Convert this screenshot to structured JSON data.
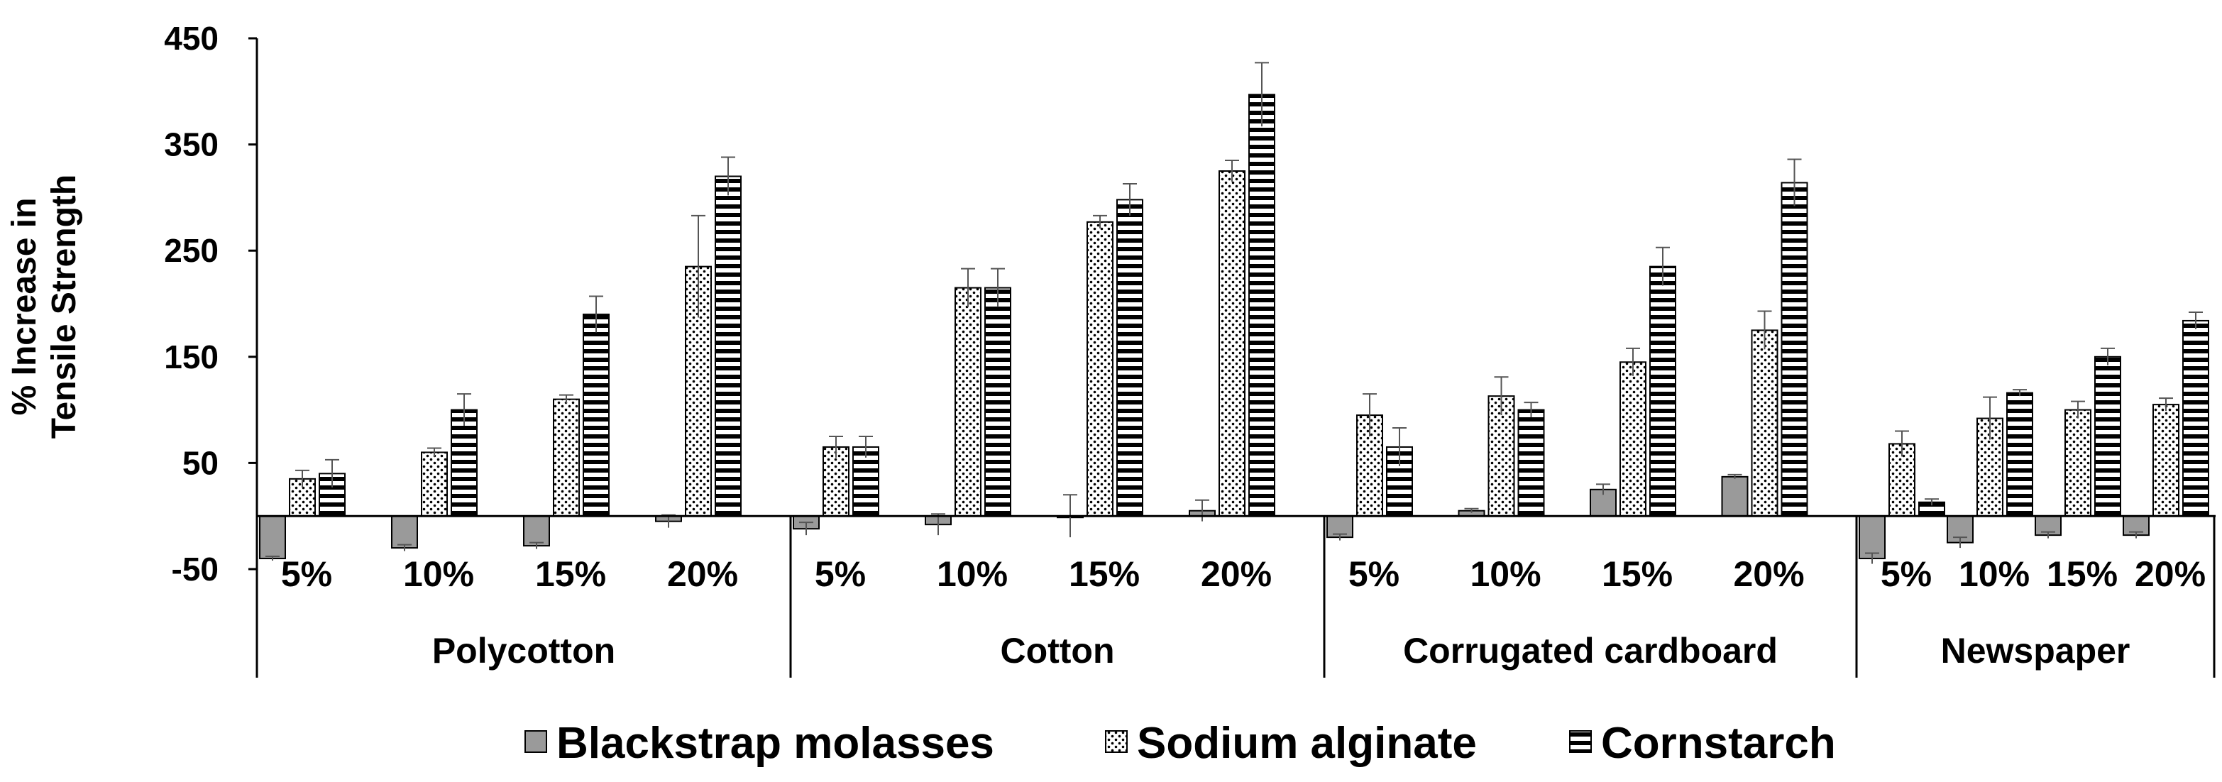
{
  "chart_data": {
    "type": "bar",
    "ylabel_lines": [
      "% Increase in",
      "Tensile Strength"
    ],
    "ylim": [
      -50,
      450
    ],
    "yticks": [
      -50,
      50,
      150,
      250,
      350,
      450
    ],
    "grid": false,
    "legend_position": "bottom",
    "subcategories": [
      "5%",
      "10%",
      "15%",
      "20%"
    ],
    "groups": [
      "Polycotton",
      "Cotton",
      "Corrugated cardboard",
      "Newspaper"
    ],
    "series": [
      {
        "name": "Blackstrap molasses",
        "pattern": "solid-gray",
        "color": "#9a9a9a",
        "values": [
          [
            -40,
            -30,
            -28,
            -5
          ],
          [
            -12,
            -8,
            0,
            5
          ],
          [
            -20,
            5,
            25,
            37
          ],
          [
            -40,
            -25,
            -18,
            -18
          ]
        ],
        "errors": [
          [
            2,
            3,
            3,
            6
          ],
          [
            6,
            10,
            20,
            10
          ],
          [
            3,
            2,
            5,
            2
          ],
          [
            5,
            5,
            3,
            3
          ]
        ]
      },
      {
        "name": "Sodium alginate",
        "pattern": "dots",
        "color": "#ffffff",
        "values": [
          [
            35,
            60,
            110,
            235
          ],
          [
            65,
            215,
            277,
            325
          ],
          [
            95,
            113,
            145,
            175
          ],
          [
            68,
            92,
            100,
            105
          ]
        ],
        "errors": [
          [
            8,
            4,
            4,
            48
          ],
          [
            10,
            18,
            6,
            10
          ],
          [
            20,
            18,
            13,
            18
          ],
          [
            12,
            20,
            8,
            6
          ]
        ]
      },
      {
        "name": "Cornstarch",
        "pattern": "horizontal-stripes",
        "color": "#ffffff",
        "values": [
          [
            40,
            100,
            190,
            320
          ],
          [
            65,
            215,
            298,
            397
          ],
          [
            65,
            100,
            235,
            314
          ],
          [
            13,
            116,
            150,
            184
          ]
        ],
        "errors": [
          [
            13,
            15,
            17,
            18
          ],
          [
            10,
            18,
            15,
            30
          ],
          [
            18,
            7,
            18,
            22
          ],
          [
            3,
            3,
            8,
            8
          ]
        ]
      }
    ]
  }
}
